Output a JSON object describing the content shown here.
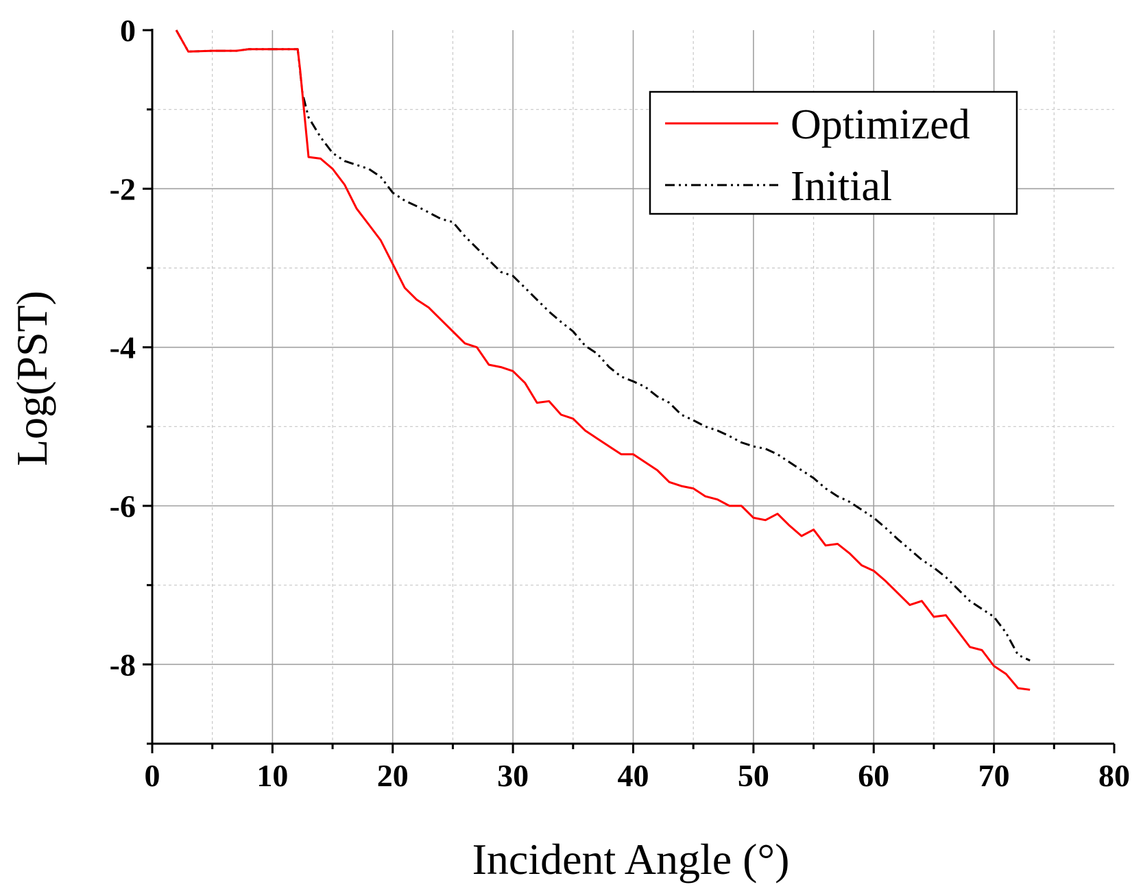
{
  "chart_data": {
    "type": "line",
    "title": "",
    "xlabel": "Incident Angle (°)",
    "ylabel": "Log(PST)",
    "xlim": [
      0,
      80
    ],
    "ylim": [
      -9,
      0
    ],
    "xticks": [
      0,
      10,
      20,
      30,
      40,
      50,
      60,
      70,
      80
    ],
    "xtick_labels": [
      "0",
      "10",
      "20",
      "30",
      "40",
      "50",
      "60",
      "70",
      "80"
    ],
    "yticks": [
      0,
      -2,
      -4,
      -6,
      -8
    ],
    "ytick_labels": [
      "0",
      "-2",
      "-4",
      "-6",
      "-8"
    ],
    "grid": true,
    "legend_position": "top-right",
    "series": [
      {
        "name": "Optimized",
        "color": "#ff0000",
        "style": "solid",
        "points": [
          [
            2,
            0
          ],
          [
            3,
            -0.27
          ],
          [
            5,
            -0.26
          ],
          [
            7,
            -0.26
          ],
          [
            8,
            -0.24
          ],
          [
            10,
            -0.24
          ],
          [
            12.1,
            -0.24
          ],
          [
            12.3,
            -0.5
          ],
          [
            13,
            -1.6
          ],
          [
            14,
            -1.62
          ],
          [
            15,
            -1.75
          ],
          [
            16,
            -1.95
          ],
          [
            17,
            -2.25
          ],
          [
            18,
            -2.45
          ],
          [
            19,
            -2.65
          ],
          [
            20,
            -2.95
          ],
          [
            21,
            -3.25
          ],
          [
            22,
            -3.4
          ],
          [
            23,
            -3.5
          ],
          [
            24,
            -3.65
          ],
          [
            25,
            -3.8
          ],
          [
            26,
            -3.95
          ],
          [
            27,
            -4.0
          ],
          [
            28,
            -4.22
          ],
          [
            29,
            -4.25
          ],
          [
            30,
            -4.3
          ],
          [
            31,
            -4.45
          ],
          [
            32,
            -4.7
          ],
          [
            33,
            -4.68
          ],
          [
            34,
            -4.85
          ],
          [
            35,
            -4.9
          ],
          [
            36,
            -5.05
          ],
          [
            37,
            -5.15
          ],
          [
            38,
            -5.25
          ],
          [
            39,
            -5.35
          ],
          [
            40,
            -5.35
          ],
          [
            41,
            -5.45
          ],
          [
            42,
            -5.55
          ],
          [
            43,
            -5.7
          ],
          [
            44,
            -5.75
          ],
          [
            45,
            -5.78
          ],
          [
            46,
            -5.88
          ],
          [
            47,
            -5.92
          ],
          [
            48,
            -6.0
          ],
          [
            49,
            -6.0
          ],
          [
            50,
            -6.15
          ],
          [
            51,
            -6.18
          ],
          [
            52,
            -6.1
          ],
          [
            53,
            -6.25
          ],
          [
            54,
            -6.38
          ],
          [
            55,
            -6.3
          ],
          [
            56,
            -6.5
          ],
          [
            57,
            -6.48
          ],
          [
            58,
            -6.6
          ],
          [
            59,
            -6.75
          ],
          [
            60,
            -6.82
          ],
          [
            61,
            -6.95
          ],
          [
            62,
            -7.1
          ],
          [
            63,
            -7.25
          ],
          [
            64,
            -7.2
          ],
          [
            65,
            -7.4
          ],
          [
            66,
            -7.38
          ],
          [
            67,
            -7.58
          ],
          [
            68,
            -7.78
          ],
          [
            69,
            -7.82
          ],
          [
            70,
            -8.02
          ],
          [
            71,
            -8.12
          ],
          [
            72,
            -8.3
          ],
          [
            73,
            -8.32
          ]
        ]
      },
      {
        "name": "Initial",
        "color": "#000000",
        "style": "dash-dot",
        "points": [
          [
            2,
            0
          ],
          [
            3,
            -0.27
          ],
          [
            5,
            -0.26
          ],
          [
            7,
            -0.26
          ],
          [
            8,
            -0.24
          ],
          [
            10,
            -0.24
          ],
          [
            12.1,
            -0.24
          ],
          [
            12.5,
            -0.8
          ],
          [
            13,
            -1.1
          ],
          [
            14,
            -1.35
          ],
          [
            15,
            -1.55
          ],
          [
            16,
            -1.65
          ],
          [
            17,
            -1.7
          ],
          [
            18,
            -1.75
          ],
          [
            19,
            -1.85
          ],
          [
            20,
            -2.05
          ],
          [
            21,
            -2.15
          ],
          [
            22,
            -2.22
          ],
          [
            23,
            -2.3
          ],
          [
            24,
            -2.38
          ],
          [
            25,
            -2.42
          ],
          [
            26,
            -2.6
          ],
          [
            27,
            -2.75
          ],
          [
            28,
            -2.9
          ],
          [
            29,
            -3.05
          ],
          [
            30,
            -3.1
          ],
          [
            31,
            -3.25
          ],
          [
            32,
            -3.4
          ],
          [
            33,
            -3.55
          ],
          [
            34,
            -3.68
          ],
          [
            35,
            -3.8
          ],
          [
            36,
            -3.98
          ],
          [
            37,
            -4.08
          ],
          [
            38,
            -4.25
          ],
          [
            39,
            -4.37
          ],
          [
            40,
            -4.43
          ],
          [
            41,
            -4.5
          ],
          [
            42,
            -4.62
          ],
          [
            43,
            -4.7
          ],
          [
            44,
            -4.85
          ],
          [
            45,
            -4.92
          ],
          [
            46,
            -5.0
          ],
          [
            47,
            -5.05
          ],
          [
            48,
            -5.12
          ],
          [
            49,
            -5.2
          ],
          [
            50,
            -5.25
          ],
          [
            51,
            -5.28
          ],
          [
            52,
            -5.35
          ],
          [
            53,
            -5.45
          ],
          [
            54,
            -5.55
          ],
          [
            55,
            -5.65
          ],
          [
            56,
            -5.78
          ],
          [
            57,
            -5.88
          ],
          [
            58,
            -5.95
          ],
          [
            59,
            -6.05
          ],
          [
            60,
            -6.15
          ],
          [
            61,
            -6.28
          ],
          [
            62,
            -6.42
          ],
          [
            63,
            -6.55
          ],
          [
            64,
            -6.68
          ],
          [
            65,
            -6.78
          ],
          [
            66,
            -6.9
          ],
          [
            67,
            -7.05
          ],
          [
            68,
            -7.2
          ],
          [
            69,
            -7.3
          ],
          [
            70,
            -7.4
          ],
          [
            71,
            -7.6
          ],
          [
            72,
            -7.88
          ],
          [
            73,
            -7.95
          ]
        ]
      }
    ]
  }
}
